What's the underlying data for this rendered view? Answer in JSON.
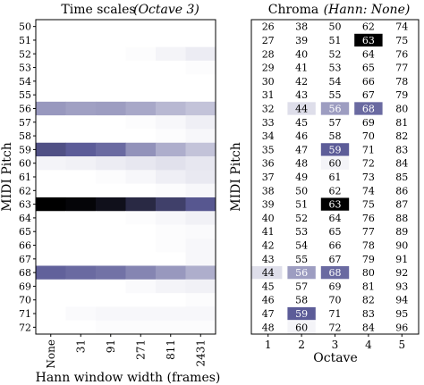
{
  "chart_data": [
    {
      "type": "heatmap",
      "title": "Time scales",
      "subtitle": "(Octave 3)",
      "xlabel": "Hann window width (frames)",
      "ylabel": "MIDI Pitch",
      "x_ticks": [
        "None",
        "31",
        "91",
        "271",
        "811",
        "2431"
      ],
      "y_ticks": [
        50,
        51,
        52,
        53,
        54,
        55,
        56,
        57,
        58,
        59,
        60,
        61,
        62,
        63,
        64,
        65,
        66,
        67,
        68,
        69,
        70,
        71,
        72
      ],
      "colormap": {
        "low": "#ffffff",
        "mid": "#5c5c98",
        "high": "#000000"
      },
      "values": [
        [
          0,
          0,
          0,
          0,
          0,
          0
        ],
        [
          0,
          0,
          0,
          0,
          0,
          0
        ],
        [
          0,
          0,
          0,
          0.01,
          0.04,
          0.07
        ],
        [
          0,
          0,
          0,
          0,
          0,
          0.01
        ],
        [
          0,
          0,
          0,
          0,
          0,
          0
        ],
        [
          0,
          0,
          0,
          0,
          0,
          0
        ],
        [
          0.38,
          0.35,
          0.36,
          0.32,
          0.26,
          0.22
        ],
        [
          0,
          0,
          0,
          0.01,
          0.03,
          0.06
        ],
        [
          0,
          0,
          0,
          0,
          0.01,
          0.03
        ],
        [
          0.65,
          0.6,
          0.55,
          0.4,
          0.3,
          0.22
        ],
        [
          0.04,
          0.05,
          0.07,
          0.09,
          0.11,
          0.09
        ],
        [
          0,
          0,
          0.01,
          0.03,
          0.06,
          0.08
        ],
        [
          0,
          0,
          0,
          0,
          0.01,
          0.03
        ],
        [
          1,
          0.98,
          0.93,
          0.82,
          0.72,
          0.62
        ],
        [
          0,
          0,
          0,
          0.01,
          0.03,
          0.05
        ],
        [
          0,
          0,
          0,
          0,
          0.01,
          0.02
        ],
        [
          0,
          0,
          0,
          0,
          0.01,
          0.03
        ],
        [
          0,
          0,
          0,
          0,
          0,
          0.03
        ],
        [
          0.58,
          0.55,
          0.52,
          0.45,
          0.38,
          0.3
        ],
        [
          0,
          0,
          0,
          0.02,
          0.04,
          0.05
        ],
        [
          0,
          0,
          0,
          0,
          0,
          0.01
        ],
        [
          0,
          0.02,
          0.03,
          0.03,
          0.03,
          0.03
        ],
        [
          0,
          0,
          0.01,
          0.01,
          0.01,
          0.01
        ]
      ]
    },
    {
      "type": "heatmap",
      "title": "Chroma",
      "subtitle": "(Hann: None)",
      "xlabel": "Octave",
      "ylabel": "MIDI Pitch",
      "x_ticks": [
        "1",
        "2",
        "3",
        "4",
        "5"
      ],
      "cells": [
        [
          26,
          38,
          50,
          62,
          74
        ],
        [
          27,
          39,
          51,
          63,
          75
        ],
        [
          28,
          40,
          52,
          64,
          76
        ],
        [
          29,
          41,
          53,
          65,
          77
        ],
        [
          30,
          42,
          54,
          66,
          78
        ],
        [
          31,
          43,
          55,
          67,
          79
        ],
        [
          32,
          44,
          56,
          68,
          80
        ],
        [
          33,
          45,
          57,
          69,
          81
        ],
        [
          34,
          46,
          58,
          70,
          82
        ],
        [
          35,
          47,
          59,
          71,
          83
        ],
        [
          36,
          48,
          60,
          72,
          84
        ],
        [
          37,
          49,
          61,
          73,
          85
        ],
        [
          38,
          50,
          62,
          74,
          86
        ],
        [
          39,
          51,
          63,
          75,
          87
        ],
        [
          40,
          52,
          64,
          76,
          88
        ],
        [
          41,
          53,
          65,
          77,
          89
        ],
        [
          42,
          54,
          66,
          78,
          90
        ],
        [
          43,
          55,
          67,
          79,
          91
        ],
        [
          44,
          56,
          68,
          80,
          92
        ],
        [
          45,
          57,
          69,
          81,
          93
        ],
        [
          46,
          58,
          70,
          82,
          94
        ],
        [
          47,
          59,
          71,
          83,
          95
        ],
        [
          48,
          60,
          72,
          84,
          96
        ]
      ],
      "intensity": [
        [
          0,
          0,
          0,
          0,
          0
        ],
        [
          0,
          0,
          0,
          1,
          0
        ],
        [
          0,
          0,
          0,
          0,
          0
        ],
        [
          0,
          0,
          0,
          0,
          0
        ],
        [
          0,
          0,
          0,
          0,
          0
        ],
        [
          0,
          0,
          0,
          0,
          0
        ],
        [
          0,
          0.12,
          0.36,
          0.55,
          0
        ],
        [
          0,
          0,
          0,
          0,
          0
        ],
        [
          0,
          0,
          0,
          0,
          0
        ],
        [
          0,
          0,
          0.6,
          0,
          0
        ],
        [
          0,
          0,
          0.04,
          0,
          0
        ],
        [
          0,
          0,
          0,
          0,
          0
        ],
        [
          0,
          0,
          0,
          0,
          0
        ],
        [
          0,
          0,
          1,
          0,
          0
        ],
        [
          0,
          0,
          0,
          0,
          0
        ],
        [
          0,
          0,
          0,
          0,
          0
        ],
        [
          0,
          0,
          0,
          0,
          0
        ],
        [
          0,
          0,
          0,
          0,
          0
        ],
        [
          0.12,
          0.36,
          0.55,
          0,
          0
        ],
        [
          0,
          0,
          0,
          0,
          0
        ],
        [
          0,
          0,
          0,
          0,
          0
        ],
        [
          0,
          0.6,
          0,
          0,
          0
        ],
        [
          0,
          0.04,
          0,
          0,
          0
        ]
      ]
    }
  ]
}
